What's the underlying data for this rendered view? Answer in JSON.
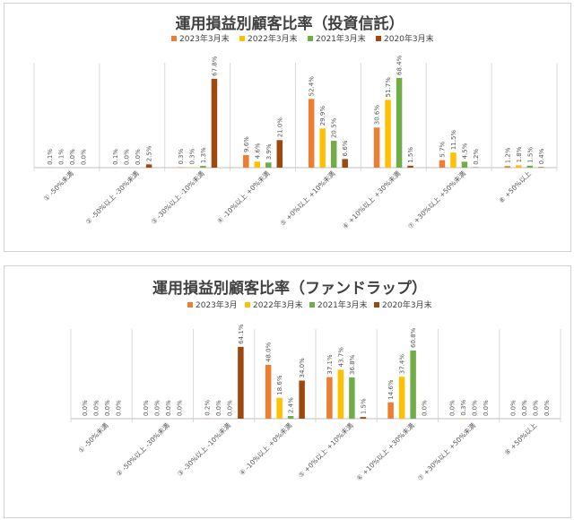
{
  "colors": [
    "#ED7D31",
    "#FFC000",
    "#70AD47",
    "#9E480E"
  ],
  "chart_data": [
    {
      "type": "bar",
      "title": "運用損益別顧客比率（投資信託）",
      "categories": [
        "① -50%未満",
        "② -50%以上 -30%未満",
        "③ -30%以上 -10%未満",
        "④ -10%以上 +0%未満",
        "⑤ +0%以上 +10%未満",
        "⑥ +10%以上 +30%未満",
        "⑦ +30%以上 +50%未満",
        "⑧ +50%以上"
      ],
      "ylim": [
        0,
        80
      ],
      "series": [
        {
          "name": "2023年3月末",
          "values": [
            0.1,
            0.1,
            0.3,
            9.6,
            52.4,
            30.6,
            5.7,
            1.2
          ],
          "labels": [
            "0.1%",
            "0.1%",
            "0.3%",
            "9.6%",
            "52.4%",
            "30.6%",
            "5.7%",
            "1.2%"
          ]
        },
        {
          "name": "2022年3月末",
          "values": [
            0.1,
            0.0,
            0.3,
            4.6,
            29.9,
            51.7,
            11.5,
            1.8
          ],
          "labels": [
            "0.1%",
            "0.0%",
            "0.3%",
            "4.6%",
            "29.9%",
            "51.7%",
            "11.5%",
            "1.8%"
          ]
        },
        {
          "name": "2021年3月末",
          "values": [
            0.0,
            0.0,
            1.3,
            3.9,
            20.5,
            68.4,
            4.5,
            1.5
          ],
          "labels": [
            "0.0%",
            "0.0%",
            "1.3%",
            "3.9%",
            "20.5%",
            "68.4%",
            "4.5%",
            "1.5%"
          ]
        },
        {
          "name": "2020年3月末",
          "values": [
            0.0,
            2.5,
            67.8,
            21.0,
            6.6,
            1.5,
            0.2,
            0.4
          ],
          "labels": [
            "0.0%",
            "2.5%",
            "67.8%",
            "21.0%",
            "6.6%",
            "1.5%",
            "0.2%",
            "0.4%"
          ]
        }
      ]
    },
    {
      "type": "bar",
      "title": "運用損益別顧客比率（ファンドラップ）",
      "categories": [
        "① -50%未満",
        "② -50%以上 -30%未満",
        "③ -30%以上 -10%未満",
        "④ -10%以上 +0%未満",
        "⑤ +0%以上 +10%未満",
        "⑥ +10%以上 +30%未満",
        "⑦ +30%以上 +50%未満",
        "⑧ +50%以上"
      ],
      "ylim": [
        0,
        80
      ],
      "series": [
        {
          "name": "2023年3月",
          "values": [
            0.0,
            0.0,
            0.2,
            48.0,
            37.1,
            14.6,
            0.0,
            0.0
          ],
          "labels": [
            "0.0%",
            "0.0%",
            "0.2%",
            "48.0%",
            "37.1%",
            "14.6%",
            "0.0%",
            "0.0%"
          ]
        },
        {
          "name": "2022年3月末",
          "values": [
            0.0,
            0.0,
            0.0,
            18.6,
            43.7,
            37.4,
            0.3,
            0.0
          ],
          "labels": [
            "0.0%",
            "0.0%",
            "0.0%",
            "18.6%",
            "43.7%",
            "37.4%",
            "0.3%",
            "0.0%"
          ]
        },
        {
          "name": "2021年3月末",
          "values": [
            0.0,
            0.0,
            0.0,
            2.4,
            36.8,
            60.8,
            0.0,
            0.0
          ],
          "labels": [
            "0.0%",
            "0.0%",
            "0.0%",
            "2.4%",
            "36.8%",
            "60.8%",
            "0.0%",
            "0.0%"
          ]
        },
        {
          "name": "2020年3月末",
          "values": [
            0.0,
            0.0,
            64.1,
            34.0,
            1.5,
            0.0,
            0.0,
            0.0
          ],
          "labels": [
            "0.0%",
            "0.0%",
            "64.1%",
            "34.0%",
            "1.5%",
            "0.0%",
            "0.0%",
            "0.0%"
          ]
        }
      ]
    }
  ]
}
